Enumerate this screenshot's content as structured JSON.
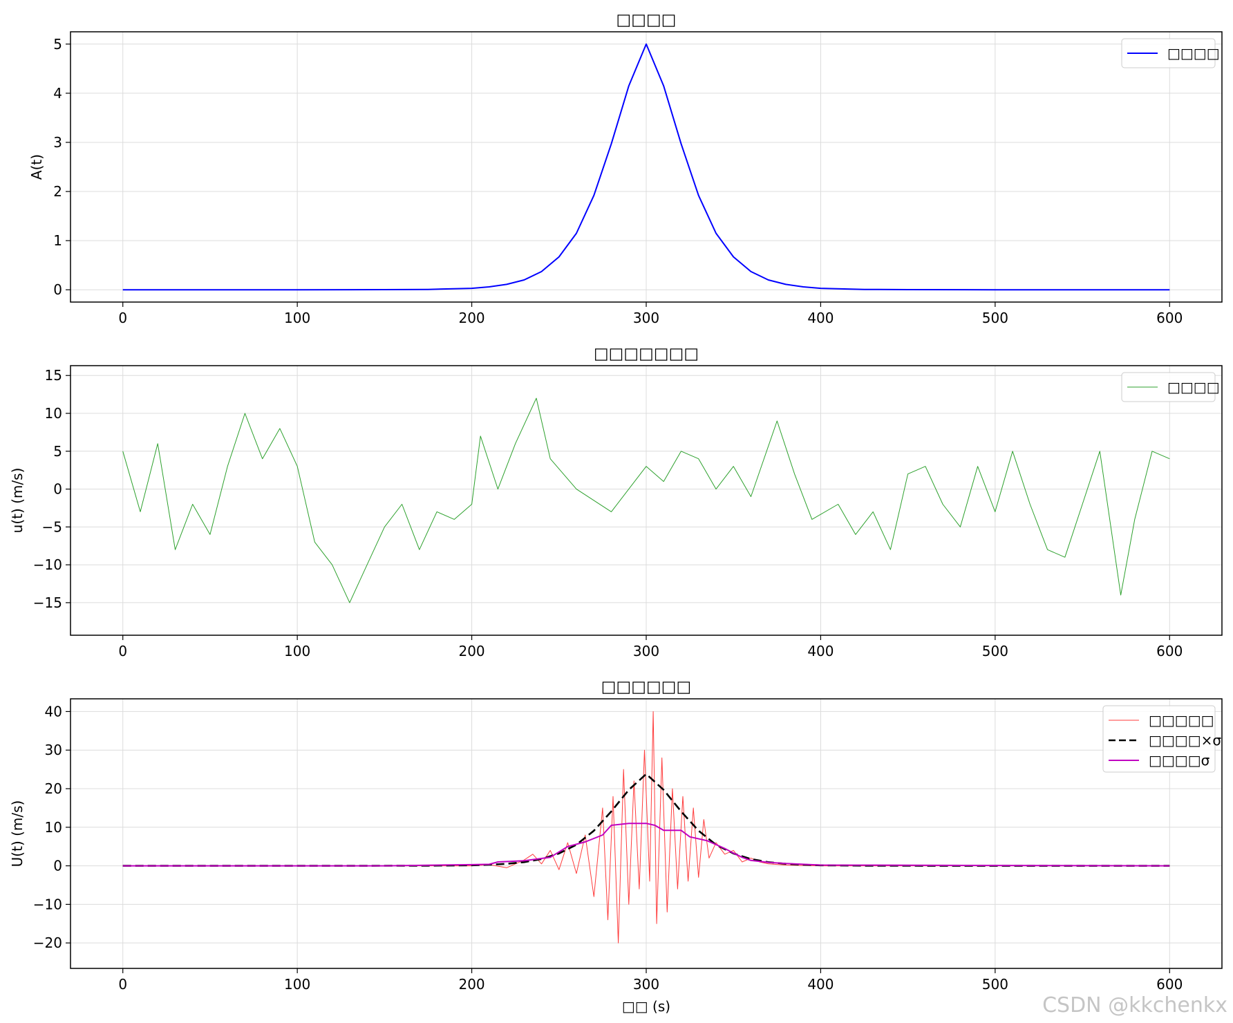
{
  "watermark": "CSDN @kkchenkx",
  "chart_data": [
    {
      "type": "line",
      "title": "□□□□",
      "xlabel": "",
      "ylabel": "A(t)",
      "xlim": [
        -30,
        630
      ],
      "ylim": [
        -0.25,
        5.25
      ],
      "x_ticks": [
        0,
        100,
        200,
        300,
        400,
        500,
        600
      ],
      "y_ticks": [
        0,
        1,
        2,
        3,
        4,
        5
      ],
      "grid": true,
      "legend_position": "top-right",
      "series": [
        {
          "name": "□□□□",
          "color": "#0000ff",
          "style": "solid",
          "linewidth": 2,
          "x": [
            0,
            100,
            150,
            175,
            200,
            210,
            220,
            230,
            240,
            250,
            260,
            270,
            280,
            290,
            300,
            310,
            320,
            330,
            340,
            350,
            360,
            370,
            380,
            390,
            400,
            425,
            450,
            500,
            600
          ],
          "y": [
            0,
            0,
            0.003,
            0.008,
            0.03,
            0.06,
            0.11,
            0.2,
            0.37,
            0.67,
            1.15,
            1.92,
            2.97,
            4.15,
            5.0,
            4.15,
            2.97,
            1.92,
            1.15,
            0.67,
            0.37,
            0.2,
            0.11,
            0.06,
            0.03,
            0.008,
            0.003,
            0,
            0
          ]
        }
      ]
    },
    {
      "type": "line",
      "title": "□□□□□□□",
      "xlabel": "",
      "ylabel": "u(t) (m/s)",
      "xlim": [
        -30,
        630
      ],
      "ylim": [
        -19.3,
        16.3
      ],
      "x_ticks": [
        0,
        100,
        200,
        300,
        400,
        500,
        600
      ],
      "y_ticks": [
        -15,
        -10,
        -5,
        0,
        5,
        10,
        15
      ],
      "grid": true,
      "legend_position": "top-right",
      "series": [
        {
          "name": "□□□□",
          "color": "#2ca02c",
          "style": "solid",
          "linewidth": 1,
          "x": [
            0,
            10,
            20,
            30,
            40,
            50,
            60,
            70,
            80,
            90,
            100,
            110,
            120,
            130,
            140,
            150,
            160,
            170,
            180,
            190,
            200,
            205,
            215,
            225,
            237,
            245,
            260,
            280,
            300,
            310,
            320,
            330,
            340,
            350,
            360,
            375,
            385,
            395,
            410,
            420,
            430,
            440,
            450,
            460,
            470,
            480,
            490,
            500,
            510,
            520,
            530,
            540,
            550,
            560,
            572,
            580,
            590,
            600
          ],
          "y": [
            5,
            -3,
            6,
            -8,
            -2,
            -6,
            3,
            10,
            4,
            8,
            3,
            -7,
            -10,
            -15,
            -10,
            -5,
            -2,
            -8,
            -3,
            -4,
            -2,
            7,
            0,
            6,
            12,
            4,
            0,
            -3,
            3,
            1,
            5,
            4,
            0,
            3,
            -1,
            9,
            2,
            -4,
            -2,
            -6,
            -3,
            -8,
            2,
            3,
            -2,
            -5,
            3,
            -3,
            5,
            -2,
            -8,
            -9,
            -2,
            5,
            -14,
            -4,
            5,
            4
          ]
        }
      ]
    },
    {
      "type": "line",
      "title": "□□□□□□",
      "xlabel": "□□ (s)",
      "ylabel": "U(t) (m/s)",
      "xlim": [
        -30,
        630
      ],
      "ylim": [
        -26.6,
        43.3
      ],
      "x_ticks": [
        0,
        100,
        200,
        300,
        400,
        500,
        600
      ],
      "y_ticks": [
        -20,
        -10,
        0,
        10,
        20,
        30,
        40
      ],
      "grid": true,
      "legend_position": "top-right",
      "series": [
        {
          "name": "□□□□□",
          "color": "#ff3b3b",
          "style": "solid",
          "linewidth": 1,
          "x": [
            0,
            200,
            210,
            220,
            230,
            235,
            240,
            245,
            250,
            255,
            260,
            265,
            270,
            275,
            278,
            281,
            284,
            287,
            290,
            293,
            296,
            299,
            302,
            304,
            306,
            309,
            312,
            315,
            318,
            321,
            324,
            327,
            330,
            333,
            336,
            340,
            345,
            350,
            355,
            360,
            365,
            370,
            380,
            400,
            600
          ],
          "y": [
            0,
            0,
            0.3,
            -0.5,
            1.5,
            3,
            0.5,
            4,
            -1,
            6,
            -2,
            8,
            -8,
            15,
            -14,
            18,
            -20,
            25,
            -10,
            22,
            -6,
            30,
            -4,
            40,
            -15,
            28,
            -12,
            20,
            -6,
            18,
            -4,
            15,
            -3,
            12,
            2,
            6,
            3,
            4,
            1,
            2,
            1,
            0.5,
            0.2,
            0,
            0
          ]
        },
        {
          "name": "□□□□×σ",
          "color": "#000000",
          "style": "dashed",
          "linewidth": 2.6,
          "x": [
            0,
            100,
            150,
            175,
            200,
            210,
            220,
            230,
            240,
            250,
            260,
            270,
            280,
            290,
            300,
            310,
            320,
            330,
            340,
            350,
            360,
            370,
            380,
            390,
            400,
            425,
            450,
            500,
            600
          ],
          "y": [
            0,
            0,
            0.014,
            0.038,
            0.14,
            0.29,
            0.52,
            0.95,
            1.76,
            3.2,
            5.47,
            9.1,
            14.1,
            19.7,
            23.8,
            19.7,
            14.1,
            9.1,
            5.47,
            3.2,
            1.76,
            0.95,
            0.52,
            0.29,
            0.14,
            0.038,
            0.014,
            0,
            0
          ]
        },
        {
          "name": "□□□□σ",
          "color": "#c000c0",
          "style": "solid",
          "linewidth": 2,
          "x": [
            0,
            150,
            200,
            210,
            215,
            230,
            245,
            255,
            265,
            275,
            280,
            290,
            300,
            305,
            310,
            320,
            325,
            335,
            345,
            350,
            355,
            360,
            370,
            380,
            400,
            600
          ],
          "y": [
            0,
            0,
            0.3,
            0.4,
            1,
            1.3,
            2.2,
            5,
            6.2,
            8,
            10.5,
            11,
            11,
            10.5,
            9.2,
            9.2,
            7.5,
            6.5,
            4.5,
            3.3,
            2.2,
            1.4,
            0.9,
            0.6,
            0.2,
            0
          ]
        }
      ]
    }
  ]
}
